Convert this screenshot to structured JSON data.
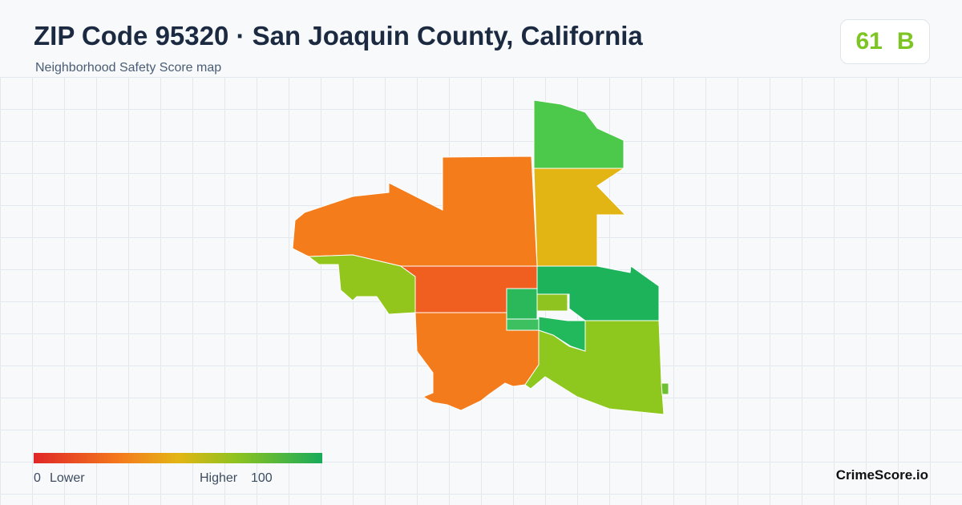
{
  "header": {
    "title": "ZIP Code 95320 · San Joaquin County, California",
    "subtitle": "Neighborhood Safety Score map"
  },
  "badge": {
    "score": "61",
    "grade": "B"
  },
  "legend": {
    "min": "0",
    "min_label": "Lower",
    "max_label": "Higher",
    "max": "100"
  },
  "brand": "CrimeScore.io"
}
